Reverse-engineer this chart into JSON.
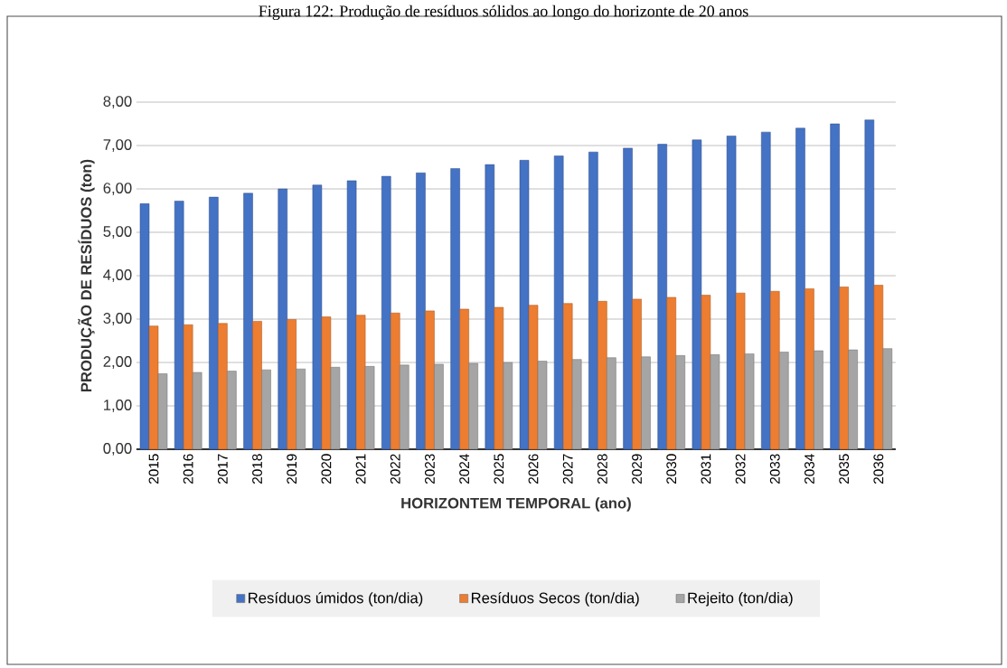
{
  "chart_data": {
    "type": "bar",
    "title": "Figura 122: Produção de resíduos sólidos ao longo do horizonte de 20 anos",
    "xlabel": "HORIZONTEM TEMPORAL (ano)",
    "ylabel": "PRODUÇÃO DE RESÍDUOS (ton)",
    "categories": [
      "2015",
      "2016",
      "2017",
      "2018",
      "2019",
      "2020",
      "2021",
      "2022",
      "2023",
      "2024",
      "2025",
      "2026",
      "2027",
      "2028",
      "2029",
      "2030",
      "2031",
      "2032",
      "2033",
      "2034",
      "2035",
      "2036"
    ],
    "series": [
      {
        "name": "Resíduos úmidos (ton/dia)",
        "color": "#4472c4",
        "values": [
          5.66,
          5.72,
          5.81,
          5.9,
          6.0,
          6.09,
          6.19,
          6.29,
          6.37,
          6.47,
          6.56,
          6.66,
          6.76,
          6.85,
          6.94,
          7.03,
          7.13,
          7.22,
          7.31,
          7.4,
          7.5,
          7.59
        ]
      },
      {
        "name": "Resíduos Secos (ton/dia)",
        "color": "#ed7d31",
        "values": [
          2.84,
          2.87,
          2.9,
          2.95,
          2.99,
          3.05,
          3.09,
          3.14,
          3.19,
          3.23,
          3.27,
          3.32,
          3.36,
          3.41,
          3.46,
          3.5,
          3.55,
          3.6,
          3.64,
          3.7,
          3.74,
          3.78
        ]
      },
      {
        "name": "Rejeito (ton/dia)",
        "color": "#a5a5a5",
        "values": [
          1.74,
          1.77,
          1.8,
          1.83,
          1.85,
          1.89,
          1.91,
          1.94,
          1.96,
          1.98,
          2.0,
          2.03,
          2.07,
          2.11,
          2.13,
          2.16,
          2.18,
          2.2,
          2.24,
          2.27,
          2.29,
          2.32
        ]
      }
    ],
    "ylim": [
      0,
      8
    ],
    "yticks": [
      {
        "value": 0,
        "label": "0,00"
      },
      {
        "value": 1,
        "label": "1,00"
      },
      {
        "value": 2,
        "label": "2,00"
      },
      {
        "value": 3,
        "label": "3,00"
      },
      {
        "value": 4,
        "label": "4,00"
      },
      {
        "value": 5,
        "label": "5,00"
      },
      {
        "value": 6,
        "label": "6,00"
      },
      {
        "value": 7,
        "label": "7,00"
      },
      {
        "value": 8,
        "label": "8,00"
      }
    ],
    "grid": "y",
    "legend": "bottom"
  }
}
